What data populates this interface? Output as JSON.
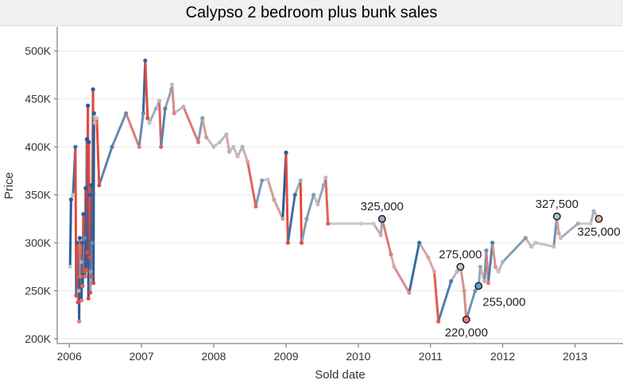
{
  "chart_data": {
    "type": "line",
    "title": "Calypso 2 bedroom plus bunk sales",
    "xlabel": "Sold date",
    "ylabel": "Price",
    "xlim": [
      "2005-11-01",
      "2013-08-31"
    ],
    "ylim": [
      195000,
      525000
    ],
    "x_ticks": [
      "2006",
      "2007",
      "2008",
      "2009",
      "2010",
      "2011",
      "2012",
      "2013"
    ],
    "y_ticks": [
      {
        "value": 200000,
        "label": "200K"
      },
      {
        "value": 250000,
        "label": "250K"
      },
      {
        "value": 300000,
        "label": "300K"
      },
      {
        "value": 350000,
        "label": "350K"
      },
      {
        "value": 400000,
        "label": "400K"
      },
      {
        "value": 450000,
        "label": "450K"
      },
      {
        "value": 500000,
        "label": "500K"
      }
    ],
    "grid": {
      "y": true,
      "x": false
    },
    "color_scheme": {
      "low": "#e8493c",
      "mid": "#c9c9c9",
      "high": "#1f5f9e"
    },
    "series": [
      {
        "points": [
          [
            "2006-01-05",
            275000
          ],
          [
            "2006-01-10",
            345000
          ],
          [
            "2006-01-20",
            350000
          ],
          [
            "2006-02-01",
            400000
          ],
          [
            "2006-02-05",
            245000
          ],
          [
            "2006-02-10",
            300000
          ],
          [
            "2006-02-14",
            238000
          ],
          [
            "2006-02-18",
            250000
          ],
          [
            "2006-02-20",
            218000
          ],
          [
            "2006-02-23",
            305000
          ],
          [
            "2006-02-26",
            265000
          ],
          [
            "2006-03-01",
            280000
          ],
          [
            "2006-03-04",
            240000
          ],
          [
            "2006-03-07",
            300000
          ],
          [
            "2006-03-10",
            255000
          ],
          [
            "2006-03-13",
            330000
          ],
          [
            "2006-03-16",
            270000
          ],
          [
            "2006-03-19",
            305000
          ],
          [
            "2006-03-22",
            265000
          ],
          [
            "2006-03-25",
            357000
          ],
          [
            "2006-03-28",
            272000
          ],
          [
            "2006-03-31",
            408000
          ],
          [
            "2006-04-03",
            290000
          ],
          [
            "2006-04-05",
            443000
          ],
          [
            "2006-04-08",
            242000
          ],
          [
            "2006-04-10",
            405000
          ],
          [
            "2006-04-13",
            285000
          ],
          [
            "2006-04-15",
            350000
          ],
          [
            "2006-04-17",
            248000
          ],
          [
            "2006-04-20",
            270000
          ],
          [
            "2006-04-22",
            360000
          ],
          [
            "2006-04-25",
            265000
          ],
          [
            "2006-04-27",
            300000
          ],
          [
            "2006-05-01",
            460000
          ],
          [
            "2006-05-03",
            258000
          ],
          [
            "2006-05-06",
            435000
          ],
          [
            "2006-05-10",
            425000
          ],
          [
            "2006-05-20",
            430000
          ],
          [
            "2006-06-01",
            360000
          ],
          [
            "2006-08-05",
            400000
          ],
          [
            "2006-10-15",
            435000
          ],
          [
            "2006-12-20",
            400000
          ],
          [
            "2007-01-10",
            435000
          ],
          [
            "2007-01-20",
            490000
          ],
          [
            "2007-02-01",
            430000
          ],
          [
            "2007-02-10",
            425000
          ],
          [
            "2007-03-15",
            440000
          ],
          [
            "2007-04-01",
            448000
          ],
          [
            "2007-04-10",
            400000
          ],
          [
            "2007-05-01",
            440000
          ],
          [
            "2007-06-01",
            460000
          ],
          [
            "2007-06-05",
            465000
          ],
          [
            "2007-06-15",
            435000
          ],
          [
            "2007-08-01",
            442000
          ],
          [
            "2007-10-15",
            405000
          ],
          [
            "2007-11-05",
            430000
          ],
          [
            "2007-11-25",
            410000
          ],
          [
            "2008-01-01",
            400000
          ],
          [
            "2008-02-01",
            405000
          ],
          [
            "2008-03-05",
            413000
          ],
          [
            "2008-03-20",
            395000
          ],
          [
            "2008-04-10",
            400000
          ],
          [
            "2008-05-01",
            390000
          ],
          [
            "2008-05-25",
            400000
          ],
          [
            "2008-06-20",
            385000
          ],
          [
            "2008-08-01",
            338000
          ],
          [
            "2008-09-01",
            365000
          ],
          [
            "2008-10-01",
            366000
          ],
          [
            "2008-11-01",
            345000
          ],
          [
            "2008-12-15",
            325000
          ],
          [
            "2009-01-01",
            394000
          ],
          [
            "2009-01-10",
            300000
          ],
          [
            "2009-02-15",
            350000
          ],
          [
            "2009-03-15",
            365000
          ],
          [
            "2009-03-20",
            300000
          ],
          [
            "2009-04-15",
            325000
          ],
          [
            "2009-05-20",
            350000
          ],
          [
            "2009-06-10",
            340000
          ],
          [
            "2009-07-10",
            360000
          ],
          [
            "2009-07-20",
            368000
          ],
          [
            "2009-08-01",
            320000
          ],
          [
            "2010-01-15",
            320000
          ],
          [
            "2010-03-20",
            320000
          ],
          [
            "2010-04-25",
            308000
          ],
          [
            "2010-05-01",
            325000
          ],
          [
            "2010-06-15",
            288000
          ],
          [
            "2010-07-01",
            275000
          ],
          [
            "2010-09-15",
            248000
          ],
          [
            "2010-11-05",
            300000
          ],
          [
            "2010-12-20",
            285000
          ],
          [
            "2011-01-20",
            270000
          ],
          [
            "2011-02-10",
            218000
          ],
          [
            "2011-04-15",
            260000
          ],
          [
            "2011-05-15",
            270000
          ],
          [
            "2011-06-01",
            275000
          ],
          [
            "2011-06-20",
            250000
          ],
          [
            "2011-07-01",
            220000
          ],
          [
            "2011-08-15",
            250000
          ],
          [
            "2011-09-01",
            255000
          ],
          [
            "2011-09-10",
            275000
          ],
          [
            "2011-10-01",
            260000
          ],
          [
            "2011-10-10",
            292000
          ],
          [
            "2011-10-20",
            258000
          ],
          [
            "2011-11-10",
            300000
          ],
          [
            "2011-11-25",
            275000
          ],
          [
            "2011-12-10",
            270000
          ],
          [
            "2012-01-01",
            280000
          ],
          [
            "2012-04-25",
            305000
          ],
          [
            "2012-05-25",
            296000
          ],
          [
            "2012-06-15",
            300000
          ],
          [
            "2012-09-15",
            296000
          ],
          [
            "2012-10-01",
            327500
          ],
          [
            "2012-10-10",
            310000
          ],
          [
            "2012-10-20",
            305000
          ],
          [
            "2013-01-15",
            320000
          ],
          [
            "2013-03-20",
            320000
          ],
          [
            "2013-04-05",
            333000
          ],
          [
            "2013-05-01",
            325000
          ]
        ]
      }
    ],
    "annotations": [
      {
        "x": "2010-05-01",
        "y": 325000,
        "label": "325,000",
        "fill": "#8fb0c9",
        "pos": "above"
      },
      {
        "x": "2011-06-01",
        "y": 275000,
        "label": "275,000",
        "fill": "#c9c9c9",
        "pos": "above"
      },
      {
        "x": "2011-07-01",
        "y": 220000,
        "label": "220,000",
        "fill": "#e8806f",
        "pos": "below"
      },
      {
        "x": "2011-09-01",
        "y": 255000,
        "label": "255,000",
        "fill": "#5f9ccf",
        "pos": "below-right"
      },
      {
        "x": "2012-10-01",
        "y": 327500,
        "label": "327,500",
        "fill": "#a7c4d8",
        "pos": "above"
      },
      {
        "x": "2013-05-01",
        "y": 325000,
        "label": "325,000",
        "fill": "#e8b89c",
        "pos": "below"
      }
    ]
  }
}
